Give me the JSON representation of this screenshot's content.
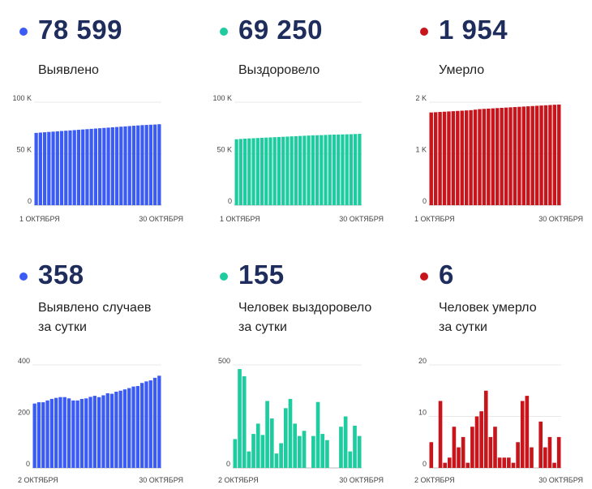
{
  "panels": [
    {
      "id": "p1",
      "value": "78 599",
      "label1": "Выявлено",
      "label2": "",
      "color": "#3b5bf5"
    },
    {
      "id": "p2",
      "value": "69 250",
      "label1": "Выздоровело",
      "label2": "",
      "color": "#1fcca0"
    },
    {
      "id": "p3",
      "value": "1 954",
      "label1": "Умерло",
      "label2": "",
      "color": "#c8151c"
    },
    {
      "id": "p4",
      "value": "358",
      "label1": "Выявлено случаев",
      "label2": "за сутки",
      "color": "#3b5bf5"
    },
    {
      "id": "p5",
      "value": "155",
      "label1": "Человек выздоровело",
      "label2": "за сутки",
      "color": "#1fcca0"
    },
    {
      "id": "p6",
      "value": "6",
      "label1": "Человек умерло",
      "label2": "за сутки",
      "color": "#c8151c"
    }
  ],
  "chart_data": [
    {
      "type": "bar",
      "title": "Выявлено",
      "ylim": [
        0,
        100000
      ],
      "yticks": [
        "0",
        "50 K",
        "100 K"
      ],
      "xticks": [
        "1 ОКТЯБРЯ",
        "30 ОКТЯБРЯ"
      ],
      "values": [
        70200,
        70500,
        70800,
        71100,
        71400,
        71700,
        72000,
        72300,
        72600,
        72900,
        73200,
        73500,
        73800,
        74100,
        74400,
        74700,
        75000,
        75300,
        75600,
        75900,
        76200,
        76500,
        76800,
        77100,
        77400,
        77700,
        77900,
        78100,
        78300,
        78599
      ]
    },
    {
      "type": "bar",
      "title": "Выздоровело",
      "ylim": [
        0,
        100000
      ],
      "yticks": [
        "0",
        "50 K",
        "100 K"
      ],
      "xticks": [
        "1 ОКТЯБРЯ",
        "30 ОКТЯБРЯ"
      ],
      "values": [
        64000,
        64300,
        64600,
        64800,
        65000,
        65200,
        65400,
        65600,
        65800,
        66000,
        66200,
        66400,
        66600,
        66800,
        67000,
        67200,
        67400,
        67600,
        67800,
        67900,
        68000,
        68200,
        68400,
        68500,
        68600,
        68700,
        68800,
        68900,
        69100,
        69250
      ]
    },
    {
      "type": "bar",
      "title": "Умерло",
      "ylim": [
        0,
        2000
      ],
      "yticks": [
        "0",
        "1 K",
        "2 K"
      ],
      "xticks": [
        "1 ОКТЯБРЯ",
        "30 ОКТЯБРЯ"
      ],
      "values": [
        1800,
        1805,
        1810,
        1815,
        1820,
        1825,
        1830,
        1835,
        1840,
        1845,
        1855,
        1865,
        1870,
        1875,
        1880,
        1885,
        1890,
        1895,
        1900,
        1905,
        1910,
        1915,
        1920,
        1925,
        1930,
        1935,
        1940,
        1945,
        1950,
        1954
      ]
    },
    {
      "type": "bar",
      "title": "Выявлено случаев за сутки",
      "ylim": [
        0,
        400
      ],
      "yticks": [
        "0",
        "200",
        "400"
      ],
      "xticks": [
        "2 ОКТЯБРЯ",
        "30 ОКТЯБРЯ"
      ],
      "values": [
        250,
        255,
        255,
        262,
        268,
        272,
        275,
        275,
        270,
        262,
        262,
        268,
        270,
        276,
        280,
        275,
        282,
        290,
        288,
        296,
        300,
        305,
        310,
        316,
        318,
        330,
        336,
        340,
        350,
        358
      ]
    },
    {
      "type": "bar",
      "title": "Человек выздоровело за сутки",
      "ylim": [
        0,
        500
      ],
      "yticks": [
        "0",
        "500"
      ],
      "xticks": [
        "2 ОКТЯБРЯ",
        "30 ОКТЯБРЯ"
      ],
      "values": [
        140,
        480,
        445,
        80,
        165,
        215,
        160,
        325,
        240,
        70,
        120,
        290,
        335,
        215,
        155,
        180,
        0,
        155,
        320,
        165,
        135,
        0,
        0,
        200,
        250,
        80,
        205,
        155
      ]
    },
    {
      "type": "bar",
      "title": "Человек умерло за сутки",
      "ylim": [
        0,
        20
      ],
      "yticks": [
        "0",
        "10",
        "20"
      ],
      "xticks": [
        "2 ОКТЯБРЯ",
        "30 ОКТЯБРЯ"
      ],
      "values": [
        5,
        0,
        13,
        1,
        2,
        8,
        4,
        6,
        1,
        8,
        10,
        11,
        15,
        6,
        8,
        2,
        2,
        2,
        1,
        5,
        13,
        14,
        4,
        0,
        9,
        4,
        6,
        1,
        6
      ]
    }
  ]
}
